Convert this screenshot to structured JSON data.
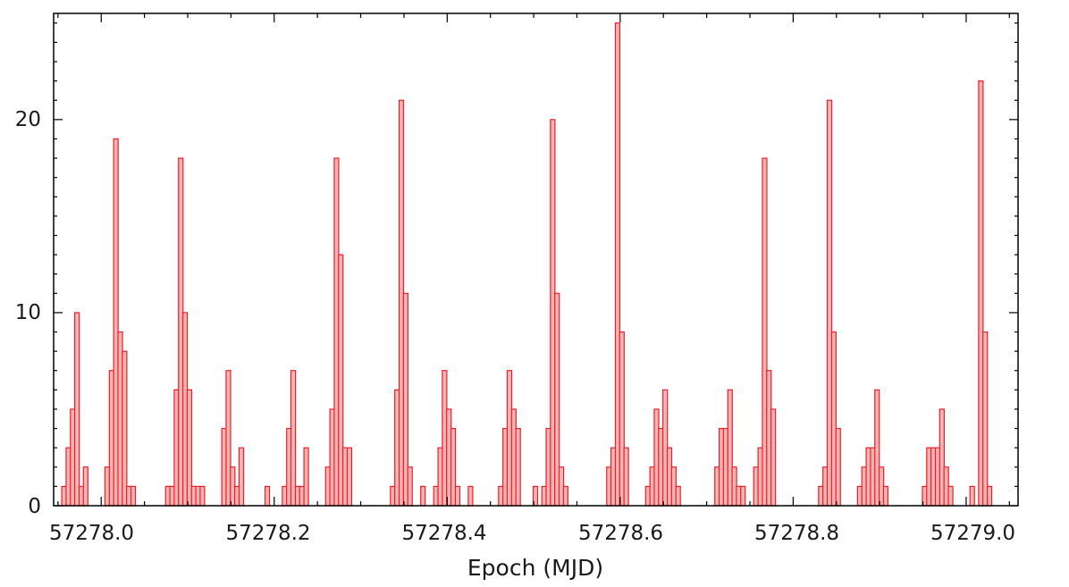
{
  "chart_data": {
    "type": "bar",
    "title": "",
    "xlabel": "Epoch (MJD)",
    "ylabel": "",
    "xlim": [
      57277.945,
      57279.06
    ],
    "ylim": [
      0,
      25.5
    ],
    "bin_width": 0.0052,
    "grid": false,
    "legend": "none",
    "colors": {
      "fill": "#ffb3b3",
      "edge": "#e8202a"
    },
    "x_ticks": [
      "57278.0",
      "57278.2",
      "57278.4",
      "57278.6",
      "57278.8",
      "57279.0"
    ],
    "y_ticks": [
      "0",
      "10",
      "20"
    ],
    "bins": [
      {
        "x": 57277.957,
        "count": 1
      },
      {
        "x": 57277.962,
        "count": 3
      },
      {
        "x": 57277.967,
        "count": 5
      },
      {
        "x": 57277.972,
        "count": 10
      },
      {
        "x": 57277.977,
        "count": 1
      },
      {
        "x": 57277.982,
        "count": 2
      },
      {
        "x": 57278.007,
        "count": 2
      },
      {
        "x": 57278.012,
        "count": 7
      },
      {
        "x": 57278.017,
        "count": 19
      },
      {
        "x": 57278.022,
        "count": 9
      },
      {
        "x": 57278.027,
        "count": 8
      },
      {
        "x": 57278.032,
        "count": 1
      },
      {
        "x": 57278.037,
        "count": 1
      },
      {
        "x": 57278.077,
        "count": 1
      },
      {
        "x": 57278.082,
        "count": 1
      },
      {
        "x": 57278.087,
        "count": 6
      },
      {
        "x": 57278.092,
        "count": 18
      },
      {
        "x": 57278.097,
        "count": 10
      },
      {
        "x": 57278.102,
        "count": 6
      },
      {
        "x": 57278.107,
        "count": 1
      },
      {
        "x": 57278.112,
        "count": 1
      },
      {
        "x": 57278.117,
        "count": 1
      },
      {
        "x": 57278.142,
        "count": 4
      },
      {
        "x": 57278.147,
        "count": 7
      },
      {
        "x": 57278.152,
        "count": 2
      },
      {
        "x": 57278.157,
        "count": 1
      },
      {
        "x": 57278.162,
        "count": 3
      },
      {
        "x": 57278.192,
        "count": 1
      },
      {
        "x": 57278.212,
        "count": 1
      },
      {
        "x": 57278.217,
        "count": 4
      },
      {
        "x": 57278.222,
        "count": 7
      },
      {
        "x": 57278.227,
        "count": 1
      },
      {
        "x": 57278.232,
        "count": 1
      },
      {
        "x": 57278.237,
        "count": 3
      },
      {
        "x": 57278.262,
        "count": 2
      },
      {
        "x": 57278.267,
        "count": 5
      },
      {
        "x": 57278.272,
        "count": 18
      },
      {
        "x": 57278.277,
        "count": 13
      },
      {
        "x": 57278.282,
        "count": 3
      },
      {
        "x": 57278.287,
        "count": 3
      },
      {
        "x": 57278.337,
        "count": 1
      },
      {
        "x": 57278.342,
        "count": 6
      },
      {
        "x": 57278.347,
        "count": 21
      },
      {
        "x": 57278.352,
        "count": 11
      },
      {
        "x": 57278.357,
        "count": 2
      },
      {
        "x": 57278.372,
        "count": 1
      },
      {
        "x": 57278.387,
        "count": 1
      },
      {
        "x": 57278.392,
        "count": 3
      },
      {
        "x": 57278.397,
        "count": 7
      },
      {
        "x": 57278.402,
        "count": 5
      },
      {
        "x": 57278.407,
        "count": 4
      },
      {
        "x": 57278.412,
        "count": 1
      },
      {
        "x": 57278.427,
        "count": 1
      },
      {
        "x": 57278.462,
        "count": 1
      },
      {
        "x": 57278.467,
        "count": 4
      },
      {
        "x": 57278.472,
        "count": 7
      },
      {
        "x": 57278.477,
        "count": 5
      },
      {
        "x": 57278.482,
        "count": 4
      },
      {
        "x": 57278.502,
        "count": 1
      },
      {
        "x": 57278.512,
        "count": 1
      },
      {
        "x": 57278.517,
        "count": 4
      },
      {
        "x": 57278.522,
        "count": 20
      },
      {
        "x": 57278.527,
        "count": 11
      },
      {
        "x": 57278.532,
        "count": 2
      },
      {
        "x": 57278.537,
        "count": 1
      },
      {
        "x": 57278.587,
        "count": 2
      },
      {
        "x": 57278.592,
        "count": 3
      },
      {
        "x": 57278.597,
        "count": 25
      },
      {
        "x": 57278.602,
        "count": 9
      },
      {
        "x": 57278.607,
        "count": 3
      },
      {
        "x": 57278.632,
        "count": 1
      },
      {
        "x": 57278.637,
        "count": 2
      },
      {
        "x": 57278.642,
        "count": 5
      },
      {
        "x": 57278.647,
        "count": 4
      },
      {
        "x": 57278.652,
        "count": 6
      },
      {
        "x": 57278.657,
        "count": 3
      },
      {
        "x": 57278.662,
        "count": 2
      },
      {
        "x": 57278.667,
        "count": 1
      },
      {
        "x": 57278.712,
        "count": 2
      },
      {
        "x": 57278.717,
        "count": 4
      },
      {
        "x": 57278.722,
        "count": 4
      },
      {
        "x": 57278.727,
        "count": 6
      },
      {
        "x": 57278.732,
        "count": 2
      },
      {
        "x": 57278.737,
        "count": 1
      },
      {
        "x": 57278.742,
        "count": 1
      },
      {
        "x": 57278.757,
        "count": 2
      },
      {
        "x": 57278.762,
        "count": 3
      },
      {
        "x": 57278.767,
        "count": 18
      },
      {
        "x": 57278.772,
        "count": 7
      },
      {
        "x": 57278.777,
        "count": 5
      },
      {
        "x": 57278.832,
        "count": 1
      },
      {
        "x": 57278.837,
        "count": 2
      },
      {
        "x": 57278.842,
        "count": 21
      },
      {
        "x": 57278.847,
        "count": 9
      },
      {
        "x": 57278.852,
        "count": 4
      },
      {
        "x": 57278.877,
        "count": 1
      },
      {
        "x": 57278.882,
        "count": 2
      },
      {
        "x": 57278.887,
        "count": 3
      },
      {
        "x": 57278.892,
        "count": 3
      },
      {
        "x": 57278.897,
        "count": 6
      },
      {
        "x": 57278.902,
        "count": 2
      },
      {
        "x": 57278.907,
        "count": 1
      },
      {
        "x": 57278.952,
        "count": 1
      },
      {
        "x": 57278.957,
        "count": 3
      },
      {
        "x": 57278.962,
        "count": 3
      },
      {
        "x": 57278.967,
        "count": 3
      },
      {
        "x": 57278.972,
        "count": 5
      },
      {
        "x": 57278.977,
        "count": 2
      },
      {
        "x": 57278.982,
        "count": 1
      },
      {
        "x": 57279.007,
        "count": 1
      },
      {
        "x": 57279.017,
        "count": 22
      },
      {
        "x": 57279.022,
        "count": 9
      },
      {
        "x": 57279.027,
        "count": 1
      }
    ]
  }
}
